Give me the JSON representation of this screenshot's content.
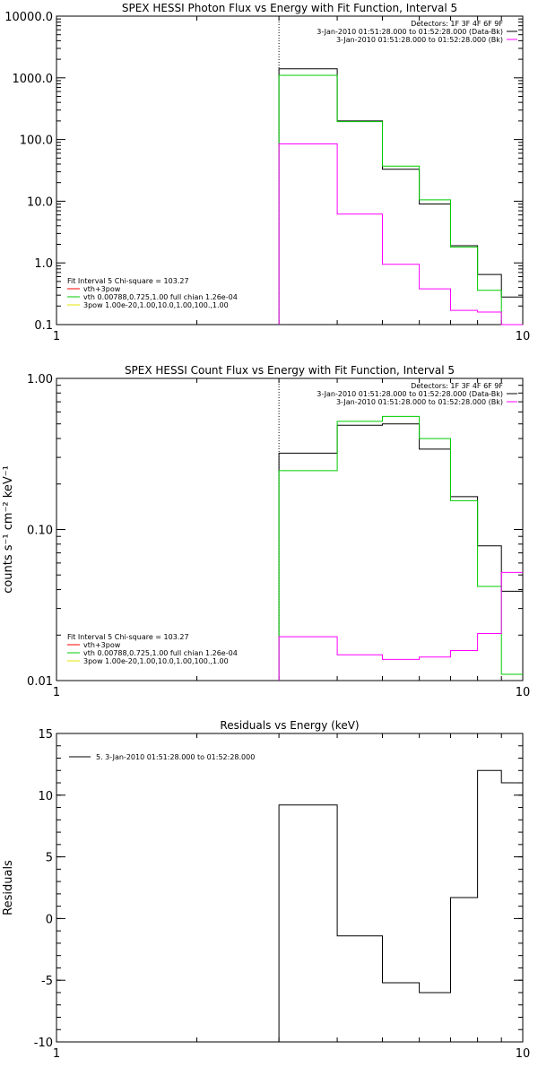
{
  "chart_data": [
    {
      "type": "line",
      "title": "SPEX HESSI Photon Flux vs Energy with Fit Function, Interval 5",
      "xscale": "log",
      "yscale": "log",
      "xlim": [
        1,
        10
      ],
      "ylim": [
        0.1,
        10000
      ],
      "xticks": [
        "1",
        "10"
      ],
      "yticks": [
        {
          "v": 0.1,
          "label": "0.1"
        },
        {
          "v": 1,
          "label": "1.0"
        },
        {
          "v": 10,
          "label": "10.0"
        },
        {
          "v": 100,
          "label": "100.0"
        },
        {
          "v": 1000,
          "label": "1000.0"
        },
        {
          "v": 10000,
          "label": "10000.0"
        }
      ],
      "ylabel": "",
      "vline": 3,
      "header": [
        "Detectors: 1F 3F 4F 6F 9F",
        "3-Jan-2010 01:51:28.000 to 01:52:28.000 (Data-Bk)",
        "3-Jan-2010 01:51:28.000 to 01:52:28.000 (Bk)"
      ],
      "header_colors": [
        "",
        "#000000",
        "#ff00ff"
      ],
      "fit_header": "Fit Interval 5    Chi-square = 103.27",
      "fit_legend": [
        {
          "label": "vth+3pow",
          "color": "#ff0000"
        },
        {
          "label": "vth 0.00788,0.725,1.00  full chian 1.26e-04",
          "color": "#00cc00"
        },
        {
          "label": "3pow 1.00e-20,1.00,10.0,1.00,100.,1.00",
          "color": "#e6e600"
        }
      ],
      "edges": [
        3,
        4,
        5,
        6,
        7,
        8,
        9,
        10
      ],
      "series": [
        {
          "color": "#000000",
          "values": [
            1400,
            200,
            33,
            9,
            1.9,
            0.65,
            0.28
          ]
        },
        {
          "color": "#00cc00",
          "values": [
            1100,
            195,
            37,
            10.5,
            1.8,
            0.36,
            0.08
          ]
        },
        {
          "color": "#ff00ff",
          "values": [
            85,
            6.2,
            0.95,
            0.38,
            0.17,
            0.16,
            0.08
          ]
        }
      ]
    },
    {
      "type": "line",
      "title": "SPEX HESSI Count Flux vs Energy with Fit Function, Interval 5",
      "xscale": "log",
      "yscale": "log",
      "xlim": [
        1,
        10
      ],
      "ylim": [
        0.01,
        1
      ],
      "xticks": [
        "1",
        "10"
      ],
      "yticks": [
        {
          "v": 0.01,
          "label": "0.01"
        },
        {
          "v": 0.1,
          "label": "0.10"
        },
        {
          "v": 1,
          "label": "1.00"
        }
      ],
      "ylabel": "counts s⁻¹ cm⁻² keV⁻¹",
      "vline": 3,
      "header": [
        "Detectors: 1F 3F 4F 6F 9F",
        "3-Jan-2010 01:51:28.000 to 01:52:28.000 (Data-Bk)",
        "3-Jan-2010 01:51:28.000 to 01:52:28.000 (Bk)"
      ],
      "header_colors": [
        "",
        "#000000",
        "#ff00ff"
      ],
      "fit_header": "Fit Interval 5    Chi-square = 103.27",
      "fit_legend": [
        {
          "label": "vth+3pow",
          "color": "#ff0000"
        },
        {
          "label": "vth 0.00788,0.725,1.00  full chian 1.26e-04",
          "color": "#00cc00"
        },
        {
          "label": "3pow 1.00e-20,1.00,10.0,1.00,100.,1.00",
          "color": "#e6e600"
        }
      ],
      "edges": [
        3,
        4,
        5,
        6,
        7,
        8,
        9,
        10
      ],
      "series": [
        {
          "color": "#000000",
          "values": [
            0.32,
            0.49,
            0.5,
            0.34,
            0.165,
            0.078,
            0.039
          ]
        },
        {
          "color": "#00cc00",
          "values": [
            0.245,
            0.52,
            0.56,
            0.4,
            0.155,
            0.042,
            0.011
          ]
        },
        {
          "color": "#ff00ff",
          "values": [
            0.0195,
            0.0148,
            0.0138,
            0.0143,
            0.0158,
            0.0205,
            0.052
          ]
        }
      ]
    },
    {
      "type": "line",
      "title": "Residuals vs Energy (keV)",
      "xscale": "log",
      "yscale": "linear",
      "xlim": [
        1,
        10
      ],
      "ylim": [
        -10,
        15
      ],
      "xticks": [
        "1",
        "10"
      ],
      "yticks": [
        {
          "v": -10,
          "label": "-10"
        },
        {
          "v": -5,
          "label": "-5"
        },
        {
          "v": 0,
          "label": "0"
        },
        {
          "v": 5,
          "label": "5"
        },
        {
          "v": 10,
          "label": "10"
        },
        {
          "v": 15,
          "label": "15"
        }
      ],
      "ylabel": "Residuals",
      "legend_line": "5.  3-Jan-2010 01:51:28.000 to 01:52:28.000",
      "edges": [
        3,
        4,
        5,
        6,
        7,
        8,
        9,
        10
      ],
      "series": [
        {
          "color": "#000000",
          "values": [
            9.2,
            -1.4,
            -5.2,
            -6.0,
            1.7,
            12.0,
            11.0
          ]
        }
      ]
    }
  ]
}
